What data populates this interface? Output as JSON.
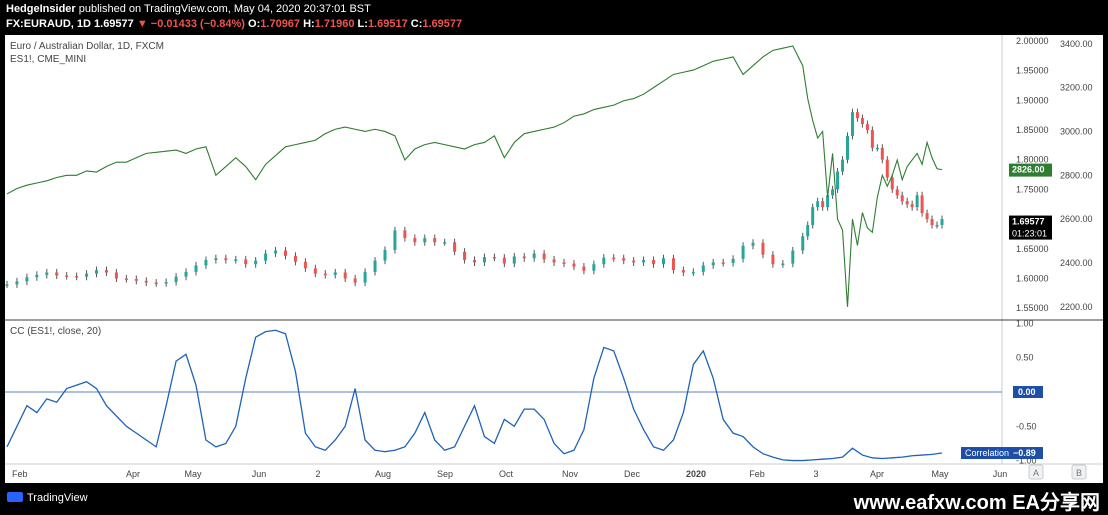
{
  "header": {
    "author": "HedgeInsider",
    "published_text": "published on TradingView.com, May 04, 2020 20:37:01 BST",
    "symbol": "FX:EURAUD, 1D",
    "last": "1.69577",
    "change": "▼ −0.01433 (−0.84%)",
    "o_label": "O:",
    "o_value": "1.70967",
    "h_label": "H:",
    "h_value": "1.71960",
    "l_label": "L:",
    "l_value": "1.69517",
    "c_label": "C:",
    "c_value": "1.69577"
  },
  "footer": {
    "brand": "TradingView",
    "watermark": "www.eafxw.com  EA分享网"
  },
  "colors": {
    "up": "#26a69a",
    "down": "#ef5350",
    "candle_bar": "#555555",
    "es": "#2e7d32",
    "cc": "#1e63b8",
    "zero": "#5b80c4"
  },
  "chart_data": [
    {
      "type": "line",
      "title": "Euro / Australian Dollar, 1D, FXCM",
      "secondary_label": "ES1!, CME_MINI",
      "x_ticks": [
        "Feb",
        "Apr",
        "May",
        "Jun",
        "2",
        "Aug",
        "Sep",
        "Oct",
        "Nov",
        "Dec",
        "2020",
        "Feb",
        "3",
        "Apr",
        "May",
        "Jun"
      ],
      "y_left_ticks": [
        "1.55000",
        "1.60000",
        "1.65000",
        "1.70000",
        "1.75000",
        "1.80000",
        "1.85000",
        "1.90000",
        "1.95000",
        "2.00000"
      ],
      "y_right_ticks": [
        "2200.00",
        "2400.00",
        "2600.00",
        "2800.00",
        "3000.00",
        "3200.00",
        "3400.00"
      ],
      "ylim_eurAud": [
        1.53,
        2.01
      ],
      "ylim_es": [
        2140,
        3440
      ],
      "series": [
        {
          "name": "FX:EURAUD",
          "style": "candles",
          "x": [
            0,
            10,
            20,
            30,
            40,
            50,
            60,
            70,
            80,
            90,
            100,
            110,
            120,
            130,
            140,
            150,
            160,
            170,
            180,
            190,
            200,
            210,
            220,
            230,
            240,
            250,
            260,
            270,
            280,
            290,
            300,
            310,
            320,
            330,
            340,
            350,
            360,
            370,
            380,
            390,
            400,
            410,
            420,
            430,
            440,
            450,
            460,
            470,
            480,
            490,
            500,
            510,
            520,
            530,
            540,
            550,
            560,
            570,
            580,
            590,
            600,
            610,
            620,
            630,
            640,
            650,
            660,
            670,
            680,
            690,
            700,
            710,
            720,
            730,
            740,
            750,
            760,
            770,
            780,
            790,
            800,
            805,
            810,
            815,
            820,
            825,
            830,
            835,
            840,
            845,
            850,
            855,
            860,
            865,
            870,
            875,
            880,
            885,
            890,
            895,
            900,
            905,
            910,
            915,
            920,
            925,
            930,
            935,
            940
          ],
          "values": [
            1.59,
            1.595,
            1.602,
            1.606,
            1.61,
            1.605,
            1.604,
            1.603,
            1.608,
            1.614,
            1.61,
            1.6,
            1.599,
            1.596,
            1.593,
            1.592,
            1.594,
            1.603,
            1.611,
            1.622,
            1.631,
            1.634,
            1.631,
            1.632,
            1.624,
            1.63,
            1.642,
            1.647,
            1.638,
            1.628,
            1.617,
            1.608,
            1.606,
            1.61,
            1.6,
            1.593,
            1.611,
            1.63,
            1.648,
            1.681,
            1.668,
            1.661,
            1.668,
            1.661,
            1.661,
            1.645,
            1.631,
            1.627,
            1.636,
            1.635,
            1.625,
            1.637,
            1.634,
            1.642,
            1.632,
            1.627,
            1.625,
            1.62,
            1.613,
            1.624,
            1.635,
            1.634,
            1.63,
            1.627,
            1.631,
            1.624,
            1.634,
            1.614,
            1.61,
            1.611,
            1.622,
            1.627,
            1.626,
            1.633,
            1.655,
            1.66,
            1.64,
            1.624,
            1.625,
            1.647,
            1.671,
            1.69,
            1.72,
            1.73,
            1.72,
            1.74,
            1.75,
            1.78,
            1.8,
            1.84,
            1.88,
            1.87,
            1.86,
            1.85,
            1.82,
            1.82,
            1.8,
            1.77,
            1.75,
            1.74,
            1.73,
            1.725,
            1.72,
            1.74,
            1.71,
            1.7,
            1.69,
            1.69,
            1.7
          ]
        },
        {
          "name": "ES1!",
          "style": "line",
          "x": [
            0,
            10,
            20,
            30,
            40,
            50,
            60,
            70,
            80,
            90,
            100,
            110,
            120,
            130,
            140,
            150,
            160,
            170,
            180,
            190,
            200,
            210,
            220,
            230,
            240,
            250,
            260,
            270,
            280,
            290,
            300,
            310,
            320,
            330,
            340,
            350,
            360,
            370,
            380,
            390,
            400,
            410,
            420,
            430,
            440,
            450,
            460,
            470,
            480,
            490,
            500,
            510,
            520,
            530,
            540,
            550,
            560,
            570,
            580,
            590,
            600,
            610,
            620,
            630,
            640,
            650,
            660,
            670,
            680,
            690,
            700,
            710,
            720,
            730,
            740,
            750,
            760,
            770,
            780,
            790,
            800,
            805,
            810,
            815,
            820,
            825,
            830,
            835,
            840,
            845,
            850,
            855,
            860,
            865,
            870,
            875,
            880,
            885,
            890,
            895,
            900,
            905,
            910,
            915,
            920,
            925,
            930,
            935,
            940
          ],
          "values": [
            2715,
            2740,
            2755,
            2765,
            2775,
            2790,
            2800,
            2800,
            2820,
            2815,
            2840,
            2860,
            2860,
            2880,
            2900,
            2905,
            2910,
            2915,
            2900,
            2920,
            2930,
            2800,
            2840,
            2880,
            2840,
            2780,
            2850,
            2890,
            2930,
            2940,
            2950,
            2960,
            2990,
            3010,
            3020,
            3010,
            3000,
            3010,
            3000,
            2980,
            2870,
            2920,
            2940,
            2950,
            2940,
            2930,
            2920,
            2940,
            2950,
            2980,
            2880,
            2950,
            2990,
            3000,
            3010,
            3020,
            3040,
            3070,
            3080,
            3100,
            3110,
            3120,
            3140,
            3150,
            3170,
            3200,
            3230,
            3260,
            3270,
            3280,
            3300,
            3320,
            3330,
            3340,
            3260,
            3300,
            3340,
            3370,
            3380,
            3390,
            3300,
            3150,
            3050,
            2970,
            3000,
            2700,
            2900,
            2600,
            2550,
            2200,
            2600,
            2480,
            2630,
            2560,
            2540,
            2700,
            2800,
            2750,
            2800,
            2870,
            2780,
            2840,
            2870,
            2900,
            2850,
            2950,
            2880,
            2830,
            2826
          ]
        }
      ]
    },
    {
      "type": "line",
      "title": "CC (ES1!, close, 20)",
      "y_ticks": [
        "-1.00",
        "-0.50",
        "0.00",
        "0.50",
        "1.00"
      ],
      "ylim": [
        -1.05,
        1.05
      ],
      "series": [
        {
          "name": "Correlation",
          "x": [
            0,
            10,
            20,
            30,
            40,
            50,
            60,
            70,
            80,
            90,
            100,
            110,
            120,
            130,
            140,
            150,
            160,
            170,
            180,
            190,
            200,
            210,
            220,
            230,
            240,
            250,
            260,
            270,
            280,
            290,
            300,
            310,
            320,
            330,
            340,
            350,
            360,
            370,
            380,
            390,
            400,
            410,
            420,
            430,
            440,
            450,
            460,
            470,
            480,
            490,
            500,
            510,
            520,
            530,
            540,
            550,
            560,
            570,
            580,
            590,
            600,
            610,
            620,
            630,
            640,
            650,
            660,
            670,
            680,
            690,
            700,
            710,
            720,
            730,
            740,
            750,
            760,
            770,
            780,
            790,
            800,
            810,
            820,
            830,
            840,
            850,
            860,
            870,
            880,
            890,
            900,
            910,
            920,
            930,
            940
          ],
          "values": [
            -0.8,
            -0.5,
            -0.2,
            -0.3,
            -0.1,
            -0.15,
            0.05,
            0.1,
            0.15,
            0.05,
            -0.2,
            -0.35,
            -0.5,
            -0.6,
            -0.7,
            -0.8,
            -0.2,
            0.45,
            0.55,
            0.1,
            -0.7,
            -0.8,
            -0.75,
            -0.5,
            0.2,
            0.8,
            0.88,
            0.9,
            0.85,
            0.3,
            -0.6,
            -0.8,
            -0.85,
            -0.7,
            -0.5,
            0.05,
            -0.7,
            -0.85,
            -0.87,
            -0.85,
            -0.8,
            -0.6,
            -0.3,
            -0.7,
            -0.85,
            -0.8,
            -0.5,
            -0.2,
            -0.65,
            -0.75,
            -0.4,
            -0.5,
            -0.25,
            -0.25,
            -0.4,
            -0.75,
            -0.9,
            -0.85,
            -0.55,
            0.2,
            0.65,
            0.6,
            0.2,
            -0.25,
            -0.55,
            -0.8,
            -0.85,
            -0.7,
            -0.3,
            0.4,
            0.6,
            0.2,
            -0.4,
            -0.6,
            -0.65,
            -0.8,
            -0.9,
            -0.95,
            -0.99,
            -1.0,
            -1.0,
            -0.99,
            -0.98,
            -0.97,
            -0.95,
            -0.82,
            -0.92,
            -0.96,
            -0.97,
            -0.96,
            -0.95,
            -0.93,
            -0.92,
            -0.91,
            -0.89
          ]
        }
      ]
    }
  ],
  "labels": {
    "last_eurAud": "1.69577",
    "countdown": "01:23:01",
    "last_es": "2826.00",
    "zero_label": "0.00",
    "corr_name": "Correlation",
    "corr_value": "−0.89",
    "pane_a": "A",
    "pane_b": "B"
  }
}
